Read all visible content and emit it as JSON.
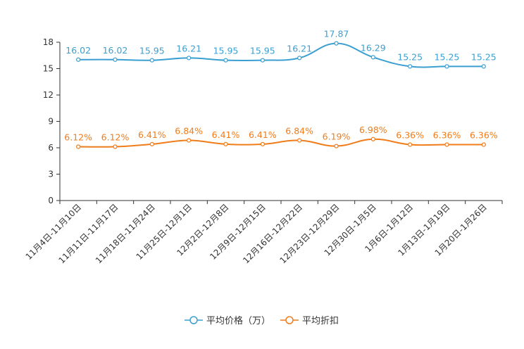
{
  "chart_data": {
    "type": "line",
    "categories": [
      "11月4日-11月10日",
      "11月11日-11月17日",
      "11月18日-11月24日",
      "11月25日-12月1日",
      "12月2日-12月8日",
      "12月9日-12月15日",
      "12月16日-12月22日",
      "12月23日-12月29日",
      "12月30日-1月5日",
      "1月6日-1月12日",
      "1月13日-1月19日",
      "1月20日-1月26日"
    ],
    "ylim": [
      0,
      18
    ],
    "yticks": [
      0,
      3,
      6,
      9,
      12,
      15,
      18
    ],
    "series": [
      {
        "name": "平均价格（万）",
        "color": "#3b9fd1",
        "values": [
          16.02,
          16.02,
          15.95,
          16.21,
          15.95,
          15.95,
          16.21,
          17.87,
          16.29,
          15.25,
          15.25,
          15.25
        ],
        "labels": [
          "16.02",
          "16.02",
          "15.95",
          "16.21",
          "15.95",
          "15.95",
          "16.21",
          "17.87",
          "16.29",
          "15.25",
          "15.25",
          "15.25"
        ]
      },
      {
        "name": "平均折扣",
        "color": "#f07c1a",
        "values": [
          6.12,
          6.12,
          6.41,
          6.84,
          6.41,
          6.41,
          6.84,
          6.19,
          6.98,
          6.36,
          6.36,
          6.36
        ],
        "labels": [
          "6.12%",
          "6.12%",
          "6.41%",
          "6.84%",
          "6.41%",
          "6.41%",
          "6.84%",
          "6.19%",
          "6.98%",
          "6.36%",
          "6.36%",
          "6.36%"
        ]
      }
    ],
    "legend_position": "bottom-center"
  }
}
